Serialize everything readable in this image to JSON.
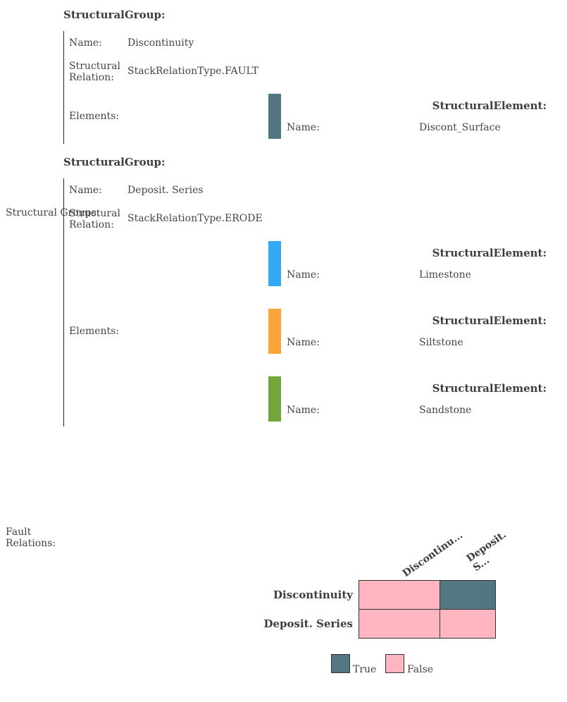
{
  "structural_groups_label": "Structural Groups:",
  "group_heading": "StructuralGroup:",
  "element_heading": "StructuralElement:",
  "labels": {
    "name": "Name:",
    "relation": "Structural Relation:",
    "elements": "Elements:"
  },
  "groups": [
    {
      "name": "Discontinuity",
      "relation": "StackRelationType.FAULT",
      "elements": [
        {
          "name": "Discont_Surface",
          "color": "#527682"
        }
      ]
    },
    {
      "name": "Deposit. Series",
      "relation": "StackRelationType.ERODE",
      "elements": [
        {
          "name": "Limestone",
          "color": "#33a8f5"
        },
        {
          "name": "Siltstone",
          "color": "#f9a53a"
        },
        {
          "name": "Sandstone",
          "color": "#72a53a"
        }
      ]
    }
  ],
  "fault_relations": {
    "label": "Fault Relations:",
    "column_labels": [
      "Discontinu...",
      "Deposit. S..."
    ],
    "row_labels": [
      "Discontinuity",
      "Deposit. Series"
    ],
    "matrix": [
      [
        false,
        true
      ],
      [
        false,
        false
      ]
    ],
    "colors": {
      "true": "#527682",
      "false": "#ffb6c1"
    },
    "legend": {
      "true_label": "True",
      "false_label": "False"
    }
  }
}
